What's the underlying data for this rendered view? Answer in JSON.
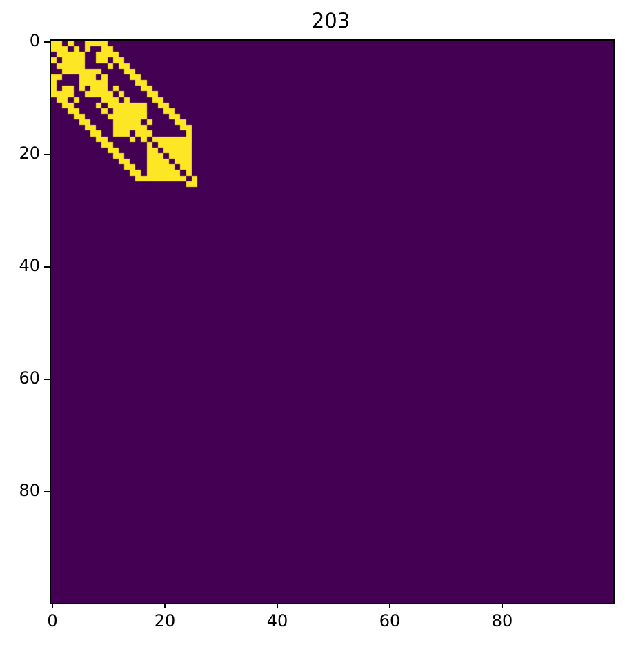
{
  "figure": {
    "background": "#ffffff"
  },
  "chart_data": {
    "type": "heatmap",
    "title": "203",
    "size": 100,
    "x_ticks": [
      0,
      20,
      40,
      60,
      80
    ],
    "y_ticks": [
      0,
      20,
      40,
      60,
      80
    ],
    "colormap": {
      "name_hint": "viridis-binary",
      "low": "#440154",
      "high": "#fde725"
    },
    "legend": "none",
    "grid": "off",
    "active_region": {
      "description": "binary symmetric matrix; rows/cols 0-25 contain the yellow pattern, all other cells are 0",
      "rows": 26,
      "cols": 26,
      "cells": [
        "11010011110000000000000000",
        "11101010011000000000000000",
        "01111100111100000000000000",
        "10111100110110000000000000",
        "01111100001011000000000000",
        "00111111100001100000000000",
        "11000111010000110000000000",
        "10000111110000011000000000",
        "10110101110100001100000000",
        "11110011111010000110000000",
        "01101000011101000011000000",
        "00110000101111111001100000",
        "00011000010111111000110000",
        "00001100001111111000011000",
        "00000110000111110100001100",
        "00000011000111111000000110",
        "00000001100111011100000010",
        "00000000110000101011111110",
        "00000000011000000101111110",
        "00000000001100000110111110",
        "00000000000110000111011110",
        "00000000000011000111101110",
        "00000000000001100111110110",
        "00000000000000110111111010",
        "00000000000000011111111101",
        "00000000000000000000000011"
      ]
    }
  }
}
